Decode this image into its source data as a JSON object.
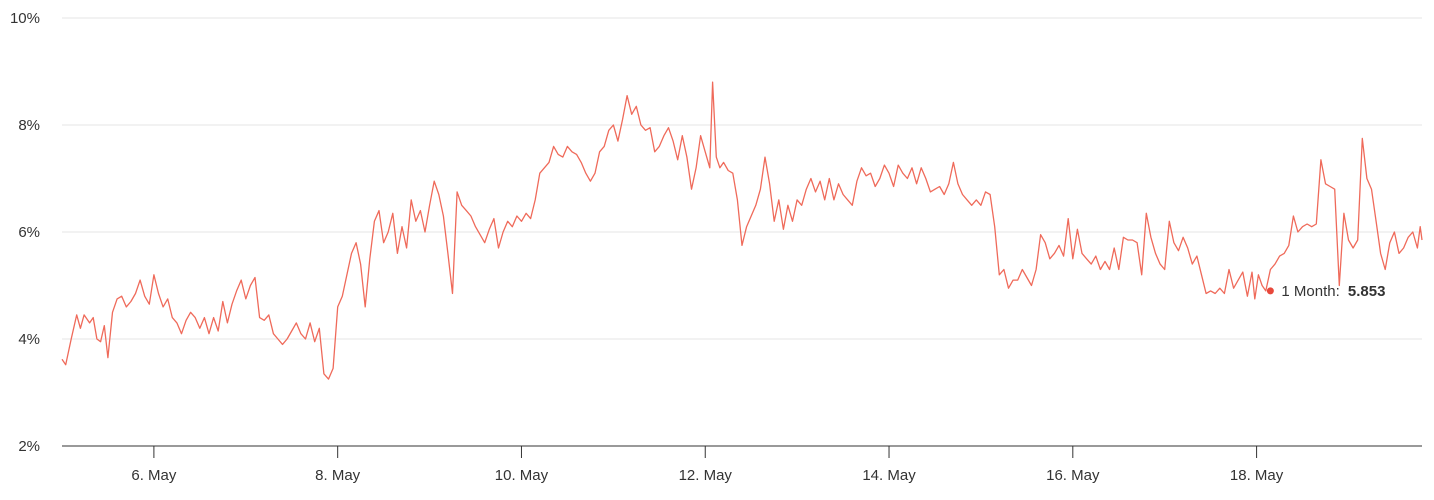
{
  "chart_data": {
    "type": "line",
    "title": "",
    "xlabel": "",
    "ylabel": "",
    "ylim": [
      2,
      10
    ],
    "xlim": [
      "5.0 May",
      "19.8 May"
    ],
    "grid": true,
    "y_ticks": [
      {
        "value": 2,
        "label": "2%"
      },
      {
        "value": 4,
        "label": "4%"
      },
      {
        "value": 6,
        "label": "6%"
      },
      {
        "value": 8,
        "label": "8%"
      },
      {
        "value": 10,
        "label": "10%"
      }
    ],
    "x_ticks": [
      {
        "value": 6,
        "label": "6. May"
      },
      {
        "value": 8,
        "label": "8. May"
      },
      {
        "value": 10,
        "label": "10. May"
      },
      {
        "value": 12,
        "label": "12. May"
      },
      {
        "value": 14,
        "label": "14. May"
      },
      {
        "value": 16,
        "label": "16. May"
      },
      {
        "value": 18,
        "label": "18. May"
      }
    ],
    "colors": {
      "line": "#ef6a5a",
      "marker": "#e8483b",
      "grid": "#e6e6e6",
      "axis": "#333333"
    },
    "series": [
      {
        "name": "1 Month",
        "points": [
          [
            5.0,
            3.62
          ],
          [
            5.04,
            3.52
          ],
          [
            5.1,
            4.0
          ],
          [
            5.16,
            4.45
          ],
          [
            5.2,
            4.2
          ],
          [
            5.24,
            4.45
          ],
          [
            5.3,
            4.3
          ],
          [
            5.34,
            4.4
          ],
          [
            5.38,
            4.0
          ],
          [
            5.42,
            3.95
          ],
          [
            5.46,
            4.25
          ],
          [
            5.5,
            3.65
          ],
          [
            5.55,
            4.5
          ],
          [
            5.6,
            4.75
          ],
          [
            5.65,
            4.8
          ],
          [
            5.7,
            4.6
          ],
          [
            5.75,
            4.7
          ],
          [
            5.8,
            4.85
          ],
          [
            5.85,
            5.1
          ],
          [
            5.9,
            4.8
          ],
          [
            5.95,
            4.65
          ],
          [
            6.0,
            5.2
          ],
          [
            6.05,
            4.85
          ],
          [
            6.1,
            4.6
          ],
          [
            6.15,
            4.75
          ],
          [
            6.2,
            4.4
          ],
          [
            6.25,
            4.3
          ],
          [
            6.3,
            4.1
          ],
          [
            6.35,
            4.35
          ],
          [
            6.4,
            4.5
          ],
          [
            6.45,
            4.4
          ],
          [
            6.5,
            4.2
          ],
          [
            6.55,
            4.4
          ],
          [
            6.6,
            4.1
          ],
          [
            6.65,
            4.4
          ],
          [
            6.7,
            4.15
          ],
          [
            6.75,
            4.7
          ],
          [
            6.8,
            4.3
          ],
          [
            6.85,
            4.65
          ],
          [
            6.9,
            4.9
          ],
          [
            6.95,
            5.1
          ],
          [
            7.0,
            4.75
          ],
          [
            7.05,
            5.0
          ],
          [
            7.1,
            5.15
          ],
          [
            7.15,
            4.4
          ],
          [
            7.2,
            4.35
          ],
          [
            7.25,
            4.45
          ],
          [
            7.3,
            4.1
          ],
          [
            7.35,
            4.0
          ],
          [
            7.4,
            3.9
          ],
          [
            7.45,
            4.0
          ],
          [
            7.5,
            4.15
          ],
          [
            7.55,
            4.3
          ],
          [
            7.6,
            4.1
          ],
          [
            7.65,
            4.0
          ],
          [
            7.7,
            4.3
          ],
          [
            7.75,
            3.95
          ],
          [
            7.8,
            4.2
          ],
          [
            7.85,
            3.35
          ],
          [
            7.9,
            3.25
          ],
          [
            7.95,
            3.45
          ],
          [
            8.0,
            4.6
          ],
          [
            8.05,
            4.8
          ],
          [
            8.1,
            5.2
          ],
          [
            8.15,
            5.6
          ],
          [
            8.2,
            5.8
          ],
          [
            8.25,
            5.4
          ],
          [
            8.3,
            4.6
          ],
          [
            8.35,
            5.5
          ],
          [
            8.4,
            6.2
          ],
          [
            8.45,
            6.4
          ],
          [
            8.5,
            5.8
          ],
          [
            8.55,
            6.0
          ],
          [
            8.6,
            6.35
          ],
          [
            8.65,
            5.6
          ],
          [
            8.7,
            6.1
          ],
          [
            8.75,
            5.7
          ],
          [
            8.8,
            6.6
          ],
          [
            8.85,
            6.2
          ],
          [
            8.9,
            6.4
          ],
          [
            8.95,
            6.0
          ],
          [
            9.0,
            6.5
          ],
          [
            9.05,
            6.95
          ],
          [
            9.1,
            6.7
          ],
          [
            9.15,
            6.3
          ],
          [
            9.2,
            5.6
          ],
          [
            9.25,
            4.85
          ],
          [
            9.3,
            6.75
          ],
          [
            9.35,
            6.5
          ],
          [
            9.4,
            6.4
          ],
          [
            9.45,
            6.3
          ],
          [
            9.5,
            6.1
          ],
          [
            9.55,
            5.95
          ],
          [
            9.6,
            5.8
          ],
          [
            9.65,
            6.05
          ],
          [
            9.7,
            6.25
          ],
          [
            9.75,
            5.7
          ],
          [
            9.8,
            6.0
          ],
          [
            9.85,
            6.2
          ],
          [
            9.9,
            6.1
          ],
          [
            9.95,
            6.3
          ],
          [
            10.0,
            6.2
          ],
          [
            10.05,
            6.35
          ],
          [
            10.1,
            6.25
          ],
          [
            10.15,
            6.6
          ],
          [
            10.2,
            7.1
          ],
          [
            10.25,
            7.2
          ],
          [
            10.3,
            7.3
          ],
          [
            10.35,
            7.6
          ],
          [
            10.4,
            7.45
          ],
          [
            10.45,
            7.4
          ],
          [
            10.5,
            7.6
          ],
          [
            10.55,
            7.5
          ],
          [
            10.6,
            7.45
          ],
          [
            10.65,
            7.3
          ],
          [
            10.7,
            7.1
          ],
          [
            10.75,
            6.95
          ],
          [
            10.8,
            7.1
          ],
          [
            10.85,
            7.5
          ],
          [
            10.9,
            7.6
          ],
          [
            10.95,
            7.9
          ],
          [
            11.0,
            8.0
          ],
          [
            11.05,
            7.7
          ],
          [
            11.1,
            8.1
          ],
          [
            11.15,
            8.55
          ],
          [
            11.2,
            8.2
          ],
          [
            11.25,
            8.35
          ],
          [
            11.3,
            8.0
          ],
          [
            11.35,
            7.9
          ],
          [
            11.4,
            7.95
          ],
          [
            11.45,
            7.5
          ],
          [
            11.5,
            7.6
          ],
          [
            11.55,
            7.8
          ],
          [
            11.6,
            7.95
          ],
          [
            11.65,
            7.7
          ],
          [
            11.7,
            7.35
          ],
          [
            11.75,
            7.8
          ],
          [
            11.8,
            7.4
          ],
          [
            11.85,
            6.8
          ],
          [
            11.9,
            7.2
          ],
          [
            11.95,
            7.8
          ],
          [
            12.0,
            7.5
          ],
          [
            12.05,
            7.2
          ],
          [
            12.08,
            8.8
          ],
          [
            12.12,
            7.4
          ],
          [
            12.16,
            7.2
          ],
          [
            12.2,
            7.3
          ],
          [
            12.25,
            7.15
          ],
          [
            12.3,
            7.1
          ],
          [
            12.35,
            6.6
          ],
          [
            12.4,
            5.75
          ],
          [
            12.45,
            6.1
          ],
          [
            12.5,
            6.3
          ],
          [
            12.55,
            6.5
          ],
          [
            12.6,
            6.8
          ],
          [
            12.65,
            7.4
          ],
          [
            12.7,
            6.9
          ],
          [
            12.75,
            6.2
          ],
          [
            12.8,
            6.6
          ],
          [
            12.85,
            6.05
          ],
          [
            12.9,
            6.5
          ],
          [
            12.95,
            6.2
          ],
          [
            13.0,
            6.6
          ],
          [
            13.05,
            6.5
          ],
          [
            13.1,
            6.8
          ],
          [
            13.15,
            7.0
          ],
          [
            13.2,
            6.75
          ],
          [
            13.25,
            6.95
          ],
          [
            13.3,
            6.6
          ],
          [
            13.35,
            7.0
          ],
          [
            13.4,
            6.6
          ],
          [
            13.45,
            6.9
          ],
          [
            13.5,
            6.7
          ],
          [
            13.55,
            6.6
          ],
          [
            13.6,
            6.5
          ],
          [
            13.65,
            6.95
          ],
          [
            13.7,
            7.2
          ],
          [
            13.75,
            7.05
          ],
          [
            13.8,
            7.1
          ],
          [
            13.85,
            6.85
          ],
          [
            13.9,
            7.0
          ],
          [
            13.95,
            7.25
          ],
          [
            14.0,
            7.1
          ],
          [
            14.05,
            6.85
          ],
          [
            14.1,
            7.25
          ],
          [
            14.15,
            7.1
          ],
          [
            14.2,
            7.0
          ],
          [
            14.25,
            7.2
          ],
          [
            14.3,
            6.9
          ],
          [
            14.35,
            7.2
          ],
          [
            14.4,
            7.0
          ],
          [
            14.45,
            6.75
          ],
          [
            14.5,
            6.8
          ],
          [
            14.55,
            6.85
          ],
          [
            14.6,
            6.7
          ],
          [
            14.65,
            6.9
          ],
          [
            14.7,
            7.3
          ],
          [
            14.75,
            6.9
          ],
          [
            14.8,
            6.7
          ],
          [
            14.85,
            6.6
          ],
          [
            14.9,
            6.5
          ],
          [
            14.95,
            6.6
          ],
          [
            15.0,
            6.5
          ],
          [
            15.05,
            6.75
          ],
          [
            15.1,
            6.7
          ],
          [
            15.15,
            6.1
          ],
          [
            15.2,
            5.2
          ],
          [
            15.25,
            5.3
          ],
          [
            15.3,
            4.95
          ],
          [
            15.35,
            5.1
          ],
          [
            15.4,
            5.1
          ],
          [
            15.45,
            5.3
          ],
          [
            15.5,
            5.15
          ],
          [
            15.55,
            5.0
          ],
          [
            15.6,
            5.3
          ],
          [
            15.65,
            5.95
          ],
          [
            15.7,
            5.8
          ],
          [
            15.75,
            5.5
          ],
          [
            15.8,
            5.6
          ],
          [
            15.85,
            5.75
          ],
          [
            15.9,
            5.55
          ],
          [
            15.95,
            6.25
          ],
          [
            16.0,
            5.5
          ],
          [
            16.05,
            6.05
          ],
          [
            16.1,
            5.6
          ],
          [
            16.15,
            5.5
          ],
          [
            16.2,
            5.4
          ],
          [
            16.25,
            5.55
          ],
          [
            16.3,
            5.3
          ],
          [
            16.35,
            5.45
          ],
          [
            16.4,
            5.3
          ],
          [
            16.45,
            5.7
          ],
          [
            16.5,
            5.3
          ],
          [
            16.55,
            5.9
          ],
          [
            16.6,
            5.85
          ],
          [
            16.65,
            5.85
          ],
          [
            16.7,
            5.8
          ],
          [
            16.75,
            5.2
          ],
          [
            16.8,
            6.35
          ],
          [
            16.85,
            5.9
          ],
          [
            16.9,
            5.6
          ],
          [
            16.95,
            5.4
          ],
          [
            17.0,
            5.3
          ],
          [
            17.05,
            6.2
          ],
          [
            17.1,
            5.8
          ],
          [
            17.15,
            5.65
          ],
          [
            17.2,
            5.9
          ],
          [
            17.25,
            5.7
          ],
          [
            17.3,
            5.4
          ],
          [
            17.35,
            5.55
          ],
          [
            17.4,
            5.2
          ],
          [
            17.45,
            4.85
          ],
          [
            17.5,
            4.9
          ],
          [
            17.55,
            4.85
          ],
          [
            17.6,
            4.95
          ],
          [
            17.65,
            4.85
          ],
          [
            17.7,
            5.3
          ],
          [
            17.75,
            4.95
          ],
          [
            17.8,
            5.1
          ],
          [
            17.85,
            5.25
          ],
          [
            17.9,
            4.8
          ],
          [
            17.95,
            5.25
          ],
          [
            17.98,
            4.75
          ],
          [
            18.02,
            5.2
          ],
          [
            18.06,
            5.0
          ],
          [
            18.1,
            4.9
          ],
          [
            18.15,
            5.3
          ],
          [
            18.2,
            5.4
          ],
          [
            18.25,
            5.55
          ],
          [
            18.3,
            5.6
          ],
          [
            18.35,
            5.75
          ],
          [
            18.4,
            6.3
          ],
          [
            18.45,
            6.0
          ],
          [
            18.5,
            6.1
          ],
          [
            18.55,
            6.15
          ],
          [
            18.6,
            6.1
          ],
          [
            18.65,
            6.15
          ],
          [
            18.7,
            7.35
          ],
          [
            18.75,
            6.9
          ],
          [
            18.8,
            6.85
          ],
          [
            18.85,
            6.8
          ],
          [
            18.9,
            5.0
          ],
          [
            18.95,
            6.35
          ],
          [
            19.0,
            5.85
          ],
          [
            19.05,
            5.7
          ],
          [
            19.1,
            5.85
          ],
          [
            19.15,
            7.75
          ],
          [
            19.2,
            7.0
          ],
          [
            19.25,
            6.8
          ],
          [
            19.3,
            6.2
          ],
          [
            19.35,
            5.6
          ],
          [
            19.4,
            5.3
          ],
          [
            19.45,
            5.8
          ],
          [
            19.5,
            6.0
          ],
          [
            19.55,
            5.6
          ],
          [
            19.6,
            5.7
          ],
          [
            19.65,
            5.9
          ],
          [
            19.7,
            6.0
          ],
          [
            19.75,
            5.7
          ],
          [
            19.78,
            6.1
          ],
          [
            19.8,
            5.85
          ]
        ]
      }
    ],
    "tooltip": {
      "series_label": "1 Month:",
      "value_label": "5.853",
      "x": 18.15,
      "y": 4.9
    }
  }
}
